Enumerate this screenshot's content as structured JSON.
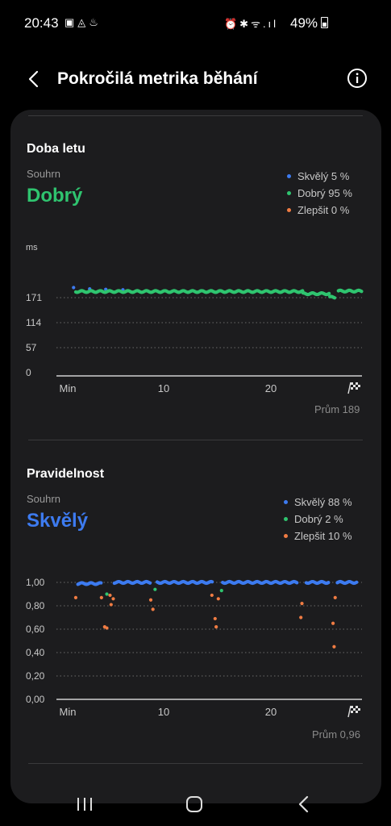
{
  "status_bar": {
    "time": "20:43",
    "battery": "49%"
  },
  "app_bar": {
    "title": "Pokročilá metrika běhání"
  },
  "colors": {
    "great": "#3d7bf0",
    "good": "#2fc46f",
    "improve": "#f07c43"
  },
  "sections": [
    {
      "title": "Doba letu",
      "summary_label": "Souhrn",
      "summary_value": "Dobrý",
      "legend": [
        "Skvělý 5 %",
        "Dobrý 95 %",
        "Zlepšit 0 %"
      ],
      "average": "Prům 189"
    },
    {
      "title": "Pravidelnost",
      "summary_label": "Souhrn",
      "summary_value": "Skvělý",
      "legend": [
        "Skvělý 88 %",
        "Dobrý 2 %",
        "Zlepšit 10 %"
      ],
      "average": "Prům 0,96"
    }
  ],
  "chart_data": [
    {
      "type": "scatter",
      "title": "Doba letu",
      "ylabel": "ms",
      "ylim": [
        0,
        228
      ],
      "yticks": [
        "171",
        "114",
        "57",
        "0"
      ],
      "ytick_values": [
        171,
        114,
        57,
        0
      ],
      "xticks": [
        "Min",
        "10",
        "20"
      ],
      "xtick_values": [
        0,
        10,
        20
      ],
      "xlim": [
        0,
        28.5
      ],
      "grid": true,
      "series": [
        {
          "name": "Skvělý",
          "points": [
            [
              1.6,
              194
            ],
            [
              3.1,
              191
            ],
            [
              4.6,
              190
            ],
            [
              6.2,
              189
            ]
          ]
        },
        {
          "name": "Dobrý",
          "segments": [
            {
              "x_start": 1.8,
              "x_end": 14.5,
              "y": 185
            },
            {
              "x_start": 14.5,
              "x_end": 23.0,
              "y": 185
            },
            {
              "x_start": 23.0,
              "x_end": 25.5,
              "y": 180
            },
            {
              "x_start": 25.5,
              "x_end": 26.0,
              "y": 172
            },
            {
              "x_start": 26.3,
              "x_end": 28.5,
              "y": 186
            }
          ]
        },
        {
          "name": "Zlepšit",
          "points": []
        }
      ]
    },
    {
      "type": "scatter",
      "title": "Pravidelnost",
      "ylim": [
        0,
        1
      ],
      "yticks": [
        "1,00",
        "0,80",
        "0,60",
        "0,40",
        "0,20",
        "0,00"
      ],
      "ytick_values": [
        1.0,
        0.8,
        0.6,
        0.4,
        0.2,
        0.0
      ],
      "xticks": [
        "Min",
        "10",
        "20"
      ],
      "xtick_values": [
        0,
        10,
        20
      ],
      "xlim": [
        0,
        28.5
      ],
      "grid": true,
      "series": [
        {
          "name": "Skvělý",
          "segments": [
            {
              "x_start": 2.0,
              "x_end": 4.2,
              "y": 0.99
            },
            {
              "x_start": 5.4,
              "x_end": 8.8,
              "y": 1.0
            },
            {
              "x_start": 9.4,
              "x_end": 14.6,
              "y": 1.0
            },
            {
              "x_start": 15.5,
              "x_end": 22.5,
              "y": 1.0
            },
            {
              "x_start": 23.3,
              "x_end": 25.4,
              "y": 1.0
            },
            {
              "x_start": 26.2,
              "x_end": 28.0,
              "y": 1.0
            }
          ]
        },
        {
          "name": "Dobrý",
          "points": [
            [
              4.7,
              0.9
            ],
            [
              9.2,
              0.94
            ],
            [
              15.4,
              0.93
            ]
          ]
        },
        {
          "name": "Zlepšit",
          "points": [
            [
              1.8,
              0.87
            ],
            [
              4.2,
              0.87
            ],
            [
              4.5,
              0.62
            ],
            [
              4.7,
              0.61
            ],
            [
              5.0,
              0.89
            ],
            [
              5.1,
              0.81
            ],
            [
              5.3,
              0.86
            ],
            [
              8.8,
              0.85
            ],
            [
              9.0,
              0.77
            ],
            [
              14.5,
              0.89
            ],
            [
              14.8,
              0.69
            ],
            [
              14.9,
              0.62
            ],
            [
              15.1,
              0.86
            ],
            [
              22.9,
              0.82
            ],
            [
              22.8,
              0.7
            ],
            [
              25.8,
              0.65
            ],
            [
              25.9,
              0.45
            ],
            [
              26.0,
              0.87
            ]
          ]
        }
      ]
    }
  ]
}
